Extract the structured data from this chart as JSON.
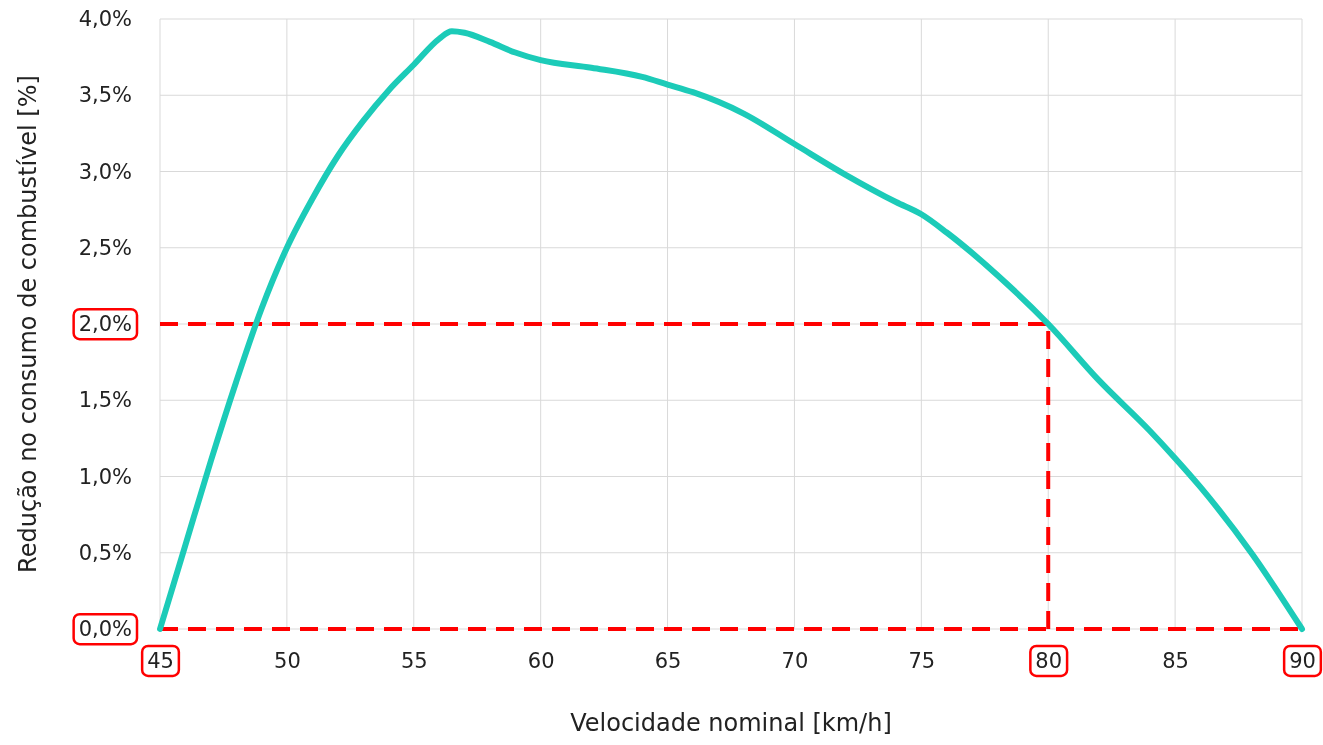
{
  "chart_data": {
    "type": "line",
    "xlabel": "Velocidade nominal [km/h]",
    "ylabel": "Redução no consumo de combustível [%]",
    "x": [
      45,
      46,
      47,
      48,
      49,
      50,
      51,
      52,
      53,
      54,
      55,
      56,
      56.5,
      57,
      58,
      59,
      60,
      62,
      64,
      65,
      66,
      68,
      70,
      72,
      74,
      75,
      76,
      78,
      80,
      82,
      84,
      85,
      86,
      88,
      90
    ],
    "series": [
      {
        "color": "#1ccbb8",
        "values": [
          0,
          0.55,
          1.1,
          1.62,
          2.1,
          2.5,
          2.82,
          3.1,
          3.33,
          3.53,
          3.7,
          3.87,
          3.92,
          3.91,
          3.85,
          3.78,
          3.73,
          3.68,
          3.62,
          3.57,
          3.52,
          3.38,
          3.18,
          2.98,
          2.8,
          2.72,
          2.6,
          2.32,
          2.0,
          1.63,
          1.3,
          1.12,
          0.93,
          0.5,
          0
        ]
      }
    ],
    "xlim": [
      45,
      90
    ],
    "xticks": [
      45,
      50,
      55,
      60,
      65,
      70,
      75,
      80,
      85,
      90
    ],
    "ylim": [
      0,
      4
    ],
    "yticks": [
      {
        "value": 0,
        "label": "0,0%"
      },
      {
        "value": 0.5,
        "label": "0,5%"
      },
      {
        "value": 1,
        "label": "1,0%"
      },
      {
        "value": 1.5,
        "label": "1,5%"
      },
      {
        "value": 2,
        "label": "2,0%"
      },
      {
        "value": 2.5,
        "label": "2,5%"
      },
      {
        "value": 3,
        "label": "3,0%"
      },
      {
        "value": 3.5,
        "label": "3,5%"
      },
      {
        "value": 4,
        "label": "4,0%"
      }
    ],
    "ref_lines": [
      {
        "axis": "y",
        "value": 2,
        "color": "#ff0000",
        "line_style": "dashed"
      },
      {
        "axis": "x",
        "value": 80,
        "color": "#ff0000",
        "line_style": "dashed"
      },
      {
        "axis": "y",
        "value": 0,
        "color": "#ff0000",
        "line_style": "dashed"
      }
    ],
    "grid": true,
    "marker": "none",
    "line_style": "solid"
  }
}
